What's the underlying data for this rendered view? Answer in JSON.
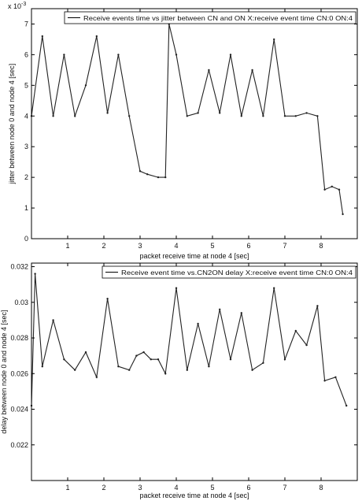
{
  "chart_data": [
    {
      "type": "line",
      "legend": "Receive events time vs jitter between CN and ON X:receive event time CN:0 ON:4",
      "legend_position": "top-right",
      "xlabel": "packet receive time at node 4 [sec]",
      "ylabel": "jitter between node 0 and node 4 [sec]",
      "y_exponent": "x 10",
      "y_exponent_power": "-3",
      "xlim": [
        0,
        9
      ],
      "ylim": [
        0,
        7.5
      ],
      "grid": false,
      "x_ticks": [
        "1",
        "2",
        "3",
        "4",
        "5",
        "6",
        "7",
        "8"
      ],
      "y_ticks": [
        "0",
        "1",
        "2",
        "3",
        "4",
        "5",
        "6",
        "7"
      ],
      "series": [
        {
          "x": [
            0.0,
            0.3,
            0.6,
            0.9,
            1.2,
            1.5,
            1.8,
            2.1,
            2.4,
            2.7,
            3.0,
            3.2,
            3.5,
            3.7,
            3.8,
            4.0,
            4.3,
            4.6,
            4.9,
            5.2,
            5.5,
            5.8,
            6.1,
            6.4,
            6.7,
            7.0,
            7.3,
            7.6,
            7.9,
            8.1,
            8.3,
            8.5,
            8.6
          ],
          "y": [
            4.0,
            6.6,
            4.0,
            6.0,
            4.0,
            5.0,
            6.6,
            4.1,
            6.0,
            4.0,
            2.2,
            2.1,
            2.0,
            2.0,
            7.0,
            6.0,
            4.0,
            4.1,
            5.5,
            4.1,
            6.0,
            4.0,
            5.5,
            4.0,
            6.5,
            4.0,
            4.0,
            4.1,
            4.0,
            1.6,
            1.7,
            1.6,
            0.8
          ]
        }
      ]
    },
    {
      "type": "line",
      "legend": "Receive event time vs.CN2ON delay X:receive event time CN:0 ON:4",
      "legend_position": "top-right",
      "xlabel": "packet receive time at node 4 [sec]",
      "ylabel": "delay between node 0 and node 4 [sec]",
      "xlim": [
        0,
        9
      ],
      "ylim": [
        0.02,
        0.0322
      ],
      "grid": false,
      "x_ticks": [
        "1",
        "2",
        "3",
        "4",
        "5",
        "6",
        "7",
        "8"
      ],
      "y_ticks": [
        "0.022",
        "0.024",
        "0.026",
        "0.028",
        "0.03",
        "0.032"
      ],
      "series": [
        {
          "x": [
            0.0,
            0.1,
            0.3,
            0.6,
            0.9,
            1.2,
            1.5,
            1.8,
            2.1,
            2.4,
            2.7,
            2.9,
            3.1,
            3.3,
            3.5,
            3.7,
            4.0,
            4.3,
            4.6,
            4.9,
            5.2,
            5.5,
            5.8,
            6.1,
            6.4,
            6.7,
            7.0,
            7.3,
            7.6,
            7.9,
            8.1,
            8.4,
            8.7
          ],
          "y": [
            0.0242,
            0.0316,
            0.0264,
            0.029,
            0.0268,
            0.0262,
            0.0272,
            0.0258,
            0.0302,
            0.0264,
            0.0262,
            0.027,
            0.0272,
            0.0268,
            0.0268,
            0.026,
            0.0308,
            0.0262,
            0.0288,
            0.0264,
            0.0296,
            0.0268,
            0.0294,
            0.0262,
            0.0266,
            0.0308,
            0.0268,
            0.0284,
            0.0276,
            0.0298,
            0.0256,
            0.0258,
            0.0242
          ]
        }
      ]
    }
  ]
}
